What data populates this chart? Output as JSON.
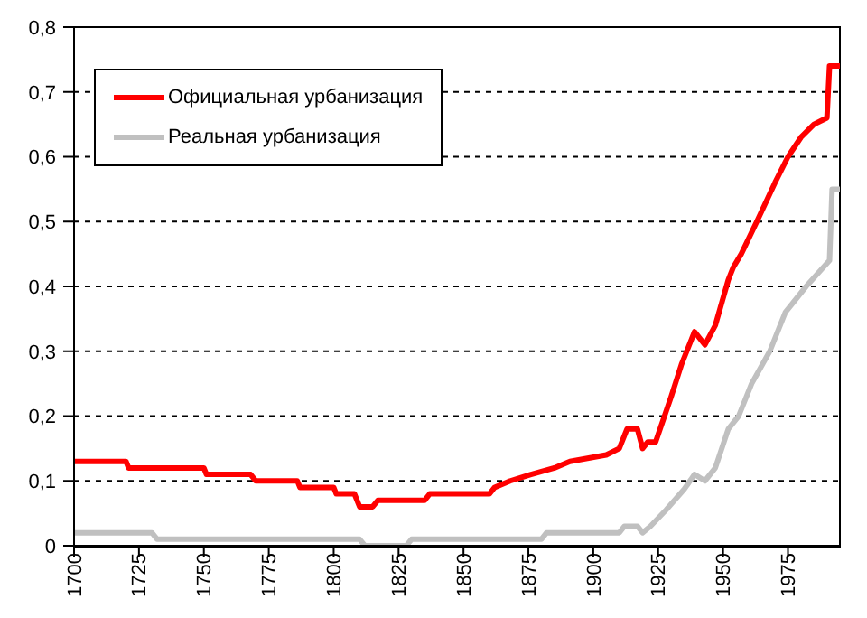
{
  "chart_data": {
    "type": "line",
    "xlim": [
      1700,
      1995
    ],
    "xticks": [
      1700,
      1725,
      1750,
      1775,
      1800,
      1825,
      1850,
      1875,
      1900,
      1925,
      1950,
      1975
    ],
    "ylim": [
      0,
      0.8
    ],
    "yticks": [
      0,
      {
        "value": 0.1,
        "label": "0,1"
      },
      {
        "value": 0.2,
        "label": "0,2"
      },
      {
        "value": 0.3,
        "label": "0,3"
      },
      {
        "value": 0.4,
        "label": "0,4"
      },
      {
        "value": 0.5,
        "label": "0,5"
      },
      {
        "value": 0.6,
        "label": "0,6"
      },
      {
        "value": 0.7,
        "label": "0,7"
      },
      {
        "value": 0.8,
        "label": "0,8"
      }
    ],
    "grid": "y",
    "legend": "top left",
    "line_style": "solid",
    "marker": "none",
    "series": [
      {
        "name": "Официальная урбанизация",
        "color": "#ff0000",
        "x": [
          1700,
          1720,
          1721,
          1750,
          1751,
          1768,
          1770,
          1786,
          1787,
          1800,
          1801,
          1808,
          1810,
          1815,
          1817,
          1835,
          1837,
          1860,
          1862,
          1868,
          1876,
          1885,
          1891,
          1905,
          1910,
          1913,
          1917,
          1919,
          1921,
          1924,
          1930,
          1934,
          1939,
          1943,
          1947,
          1952,
          1954,
          1957,
          1963,
          1970,
          1975,
          1980,
          1985,
          1990,
          1991,
          1995
        ],
        "values": [
          0.13,
          0.13,
          0.12,
          0.12,
          0.11,
          0.11,
          0.1,
          0.1,
          0.09,
          0.09,
          0.08,
          0.08,
          0.06,
          0.06,
          0.07,
          0.07,
          0.08,
          0.08,
          0.09,
          0.1,
          0.11,
          0.12,
          0.13,
          0.14,
          0.15,
          0.18,
          0.18,
          0.15,
          0.16,
          0.16,
          0.23,
          0.28,
          0.33,
          0.31,
          0.34,
          0.41,
          0.43,
          0.45,
          0.5,
          0.56,
          0.6,
          0.63,
          0.65,
          0.66,
          0.74,
          0.74
        ]
      },
      {
        "name": "Реальная урбанизация",
        "color": "#c0c0c0",
        "x": [
          1700,
          1730,
          1732,
          1810,
          1812,
          1828,
          1830,
          1880,
          1882,
          1910,
          1912,
          1917,
          1919,
          1922,
          1928,
          1935,
          1939,
          1943,
          1947,
          1952,
          1956,
          1961,
          1968,
          1974,
          1982,
          1991,
          1992,
          1995
        ],
        "values": [
          0.02,
          0.02,
          0.01,
          0.01,
          0,
          0,
          0.01,
          0.01,
          0.02,
          0.02,
          0.03,
          0.03,
          0.02,
          0.03,
          0.055,
          0.087,
          0.11,
          0.1,
          0.12,
          0.18,
          0.2,
          0.25,
          0.3,
          0.36,
          0.4,
          0.44,
          0.55,
          0.55
        ]
      }
    ]
  }
}
